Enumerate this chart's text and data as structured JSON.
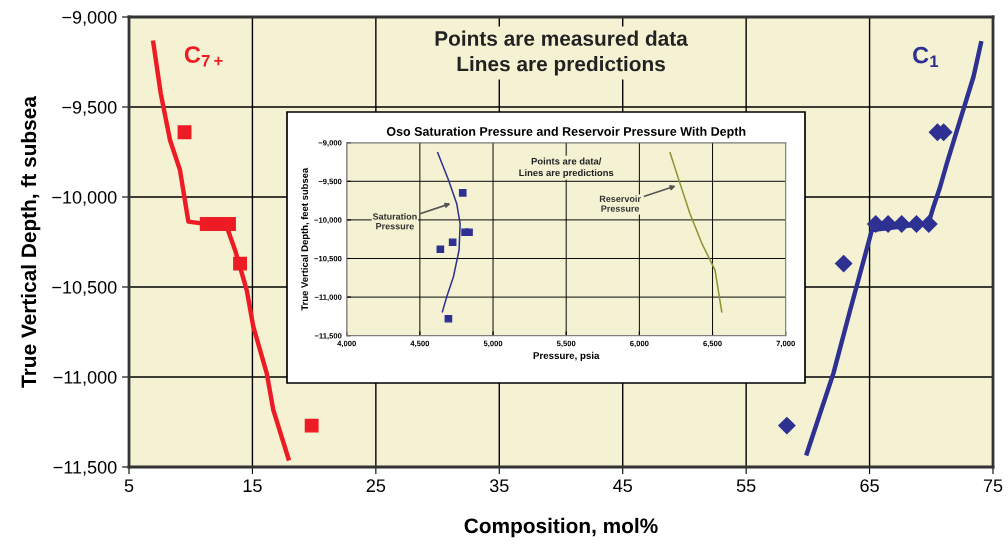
{
  "chart_data": [
    {
      "type": "line",
      "xlabel": "Composition, mol%",
      "ylabel": "True Vertical Depth, ft subsea",
      "xlim": [
        5,
        75
      ],
      "xticks": [
        5,
        15,
        25,
        35,
        45,
        55,
        65,
        75
      ],
      "ylim": [
        -11500,
        -9000
      ],
      "yticks": [
        {
          "value": -11500,
          "label": "−11,500"
        },
        {
          "value": -11000,
          "label": "−11,000"
        },
        {
          "value": -10500,
          "label": "−10,500"
        },
        {
          "value": -10000,
          "label": "−10,000"
        },
        {
          "value": -9500,
          "label": "−9,500"
        },
        {
          "value": -9000,
          "label": "−9,000"
        }
      ],
      "grid": true,
      "annotations": [
        "Points are measured data\nLines are predictions"
      ],
      "series": [
        {
          "name": "C$_{7+}$",
          "type": "line",
          "color": "#ed1c24",
          "x": [
            6.97,
            7.57,
            8.32,
            9.13,
            9.81,
            12.92,
            13.59,
            14.54,
            15.07,
            16.16,
            16.69,
            17.91
          ],
          "values": [
            -9143,
            -9424,
            -9683,
            -9850,
            -10137,
            -10165,
            -10294,
            -10517,
            -10720,
            -10980,
            -11183,
            -11452
          ]
        },
        {
          "type": "scatter",
          "marker": "square",
          "color": "#ed1c24",
          "x": [
            9.5,
            11.3,
            12.2,
            13.1,
            14.0,
            19.8
          ],
          "values": [
            -9640,
            -10150,
            -10150,
            -10150,
            -10370,
            -11270
          ]
        },
        {
          "name": "C$_{1}$",
          "type": "line",
          "color": "#2e3192",
          "x": [
            59.92,
            61.13,
            62.07,
            63.43,
            65.19,
            69.77,
            70.18,
            70.72,
            71.26,
            72.34,
            73.42,
            74.02
          ],
          "values": [
            -11424,
            -11174,
            -10980,
            -10628,
            -10183,
            -10146,
            -10054,
            -9943,
            -9813,
            -9572,
            -9332,
            -9146
          ]
        },
        {
          "type": "scatter",
          "marker": "diamond",
          "color": "#2e3192",
          "x": [
            70.5,
            71.0,
            65.5,
            66.5,
            67.6,
            68.8,
            69.8,
            62.9,
            58.3
          ],
          "values": [
            -9640,
            -9640,
            -10150,
            -10150,
            -10150,
            -10150,
            -10150,
            -10370,
            -11270
          ]
        }
      ]
    },
    {
      "type": "line",
      "title": "Oso Saturation Pressure and Reservoir Pressure With Depth",
      "xlabel": "Pressure, psia",
      "ylabel": "True Vertical Depth, feet subsea",
      "xlim": [
        4000,
        7000
      ],
      "xticks": [
        {
          "value": 4000,
          "label": "4,000"
        },
        {
          "value": 4500,
          "label": "4,500"
        },
        {
          "value": 5000,
          "label": "5,000"
        },
        {
          "value": 5500,
          "label": "5,500"
        },
        {
          "value": 6000,
          "label": "6,000"
        },
        {
          "value": 6500,
          "label": "6,500"
        },
        {
          "value": 7000,
          "label": "7,000"
        }
      ],
      "ylim": [
        -11500,
        -9000
      ],
      "yticks": [
        {
          "value": -11500,
          "label": "−11,500"
        },
        {
          "value": -11000,
          "label": "−11,000"
        },
        {
          "value": -10500,
          "label": "−10,500"
        },
        {
          "value": -10000,
          "label": "−10,000"
        },
        {
          "value": -9500,
          "label": "−9,500"
        },
        {
          "value": -9000,
          "label": "−9,000"
        }
      ],
      "grid": true,
      "annotations": [
        "Points are data/\nLines are predictions",
        {
          "text": "Saturation\nPressure",
          "x": 4728,
          "y": -9777
        },
        {
          "text": "Reservoir\nPressure",
          "x": 6267,
          "y": -9548
        }
      ],
      "series": [
        {
          "type": "line",
          "color": "#2e3192",
          "x": [
            4622,
            4695,
            4752,
            4775,
            4768,
            4729,
            4683,
            4654
          ],
          "values": [
            -9130,
            -9480,
            -9790,
            -10050,
            -10390,
            -10740,
            -11000,
            -11190
          ]
        },
        {
          "type": "scatter",
          "marker": "square",
          "color": "#2e3192",
          "x": [
            4793,
            4809,
            4836,
            4724,
            4640,
            4695
          ],
          "values": [
            -9650,
            -10160,
            -10160,
            -10290,
            -10380,
            -11280
          ]
        },
        {
          "type": "line",
          "color": "#8a9632",
          "x": [
            6210,
            6278,
            6346,
            6426,
            6517,
            6563
          ],
          "values": [
            -9130,
            -9530,
            -9920,
            -10300,
            -10650,
            -11190
          ]
        }
      ]
    }
  ]
}
